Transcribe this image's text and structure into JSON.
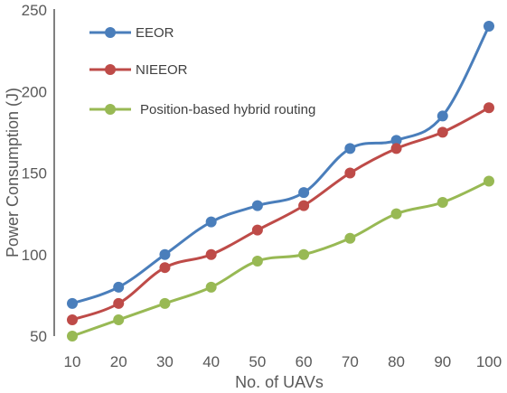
{
  "chart_data": {
    "type": "line",
    "title": "",
    "xlabel": "No. of UAVs",
    "ylabel": "Power  Consumption (J)",
    "x": [
      10,
      20,
      30,
      40,
      50,
      60,
      70,
      80,
      90,
      100
    ],
    "xlim": [
      10,
      100
    ],
    "ylim": [
      50,
      250
    ],
    "x_ticks": [
      10,
      20,
      30,
      40,
      50,
      60,
      70,
      80,
      90,
      100
    ],
    "y_ticks": [
      50,
      100,
      150,
      200,
      250
    ],
    "grid": false,
    "legend_position": "top-left",
    "series": [
      {
        "name": "EEOR",
        "color": "#4a7ebb",
        "values": [
          70,
          80,
          100,
          120,
          130,
          138,
          165,
          170,
          185,
          240
        ]
      },
      {
        "name": "NIEEOR",
        "color": "#be4b48",
        "values": [
          60,
          70,
          92,
          100,
          115,
          130,
          150,
          165,
          175,
          190
        ]
      },
      {
        "name": "Position-based hybrid routing",
        "color": "#98b954",
        "values": [
          50,
          60,
          70,
          80,
          96,
          100,
          110,
          125,
          132,
          145
        ]
      }
    ]
  }
}
